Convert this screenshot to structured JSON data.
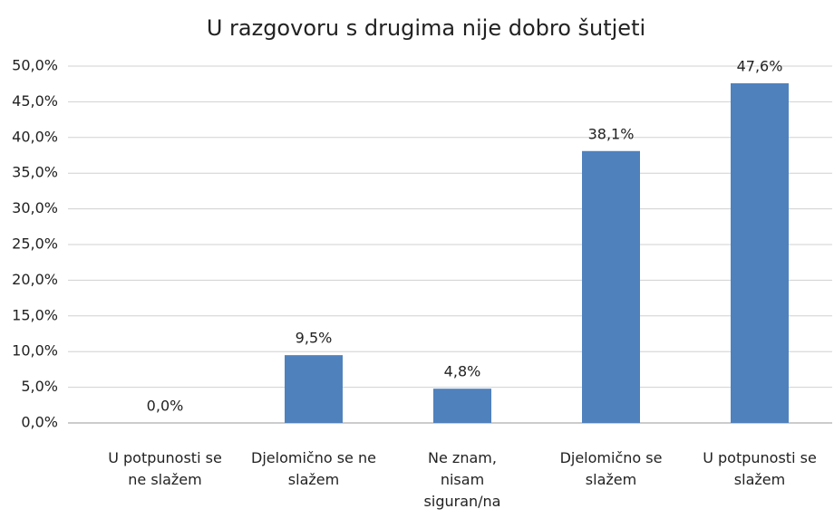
{
  "chart_data": {
    "type": "bar",
    "title": "U razgovoru s drugima nije dobro šutjeti",
    "categories": [
      "U potpunosti se ne slažem",
      "Djelomično se ne slažem",
      "Ne znam, nisam siguran/na",
      "Djelomično se slažem",
      "U potpunosti se slažem"
    ],
    "values": [
      0,
      9.5,
      4.8,
      38.1,
      47.6
    ],
    "value_labels": [
      "0,0%",
      "9,5%",
      "4,8%",
      "38,1%",
      "47,6%"
    ],
    "color": "#4f81bd",
    "ylim": [
      0,
      50
    ],
    "yticks": [
      {
        "value": 0,
        "label": "0,0%"
      },
      {
        "value": 5,
        "label": "5,0%"
      },
      {
        "value": 10,
        "label": "10,0%"
      },
      {
        "value": 15,
        "label": "15,0%"
      },
      {
        "value": 20,
        "label": "20,0%"
      },
      {
        "value": 25,
        "label": "25,0%"
      },
      {
        "value": 30,
        "label": "30,0%"
      },
      {
        "value": 35,
        "label": "35,0%"
      },
      {
        "value": 40,
        "label": "40,0%"
      },
      {
        "value": 45,
        "label": "45,0%"
      },
      {
        "value": 50,
        "label": "50,0%"
      }
    ],
    "grid": true
  }
}
